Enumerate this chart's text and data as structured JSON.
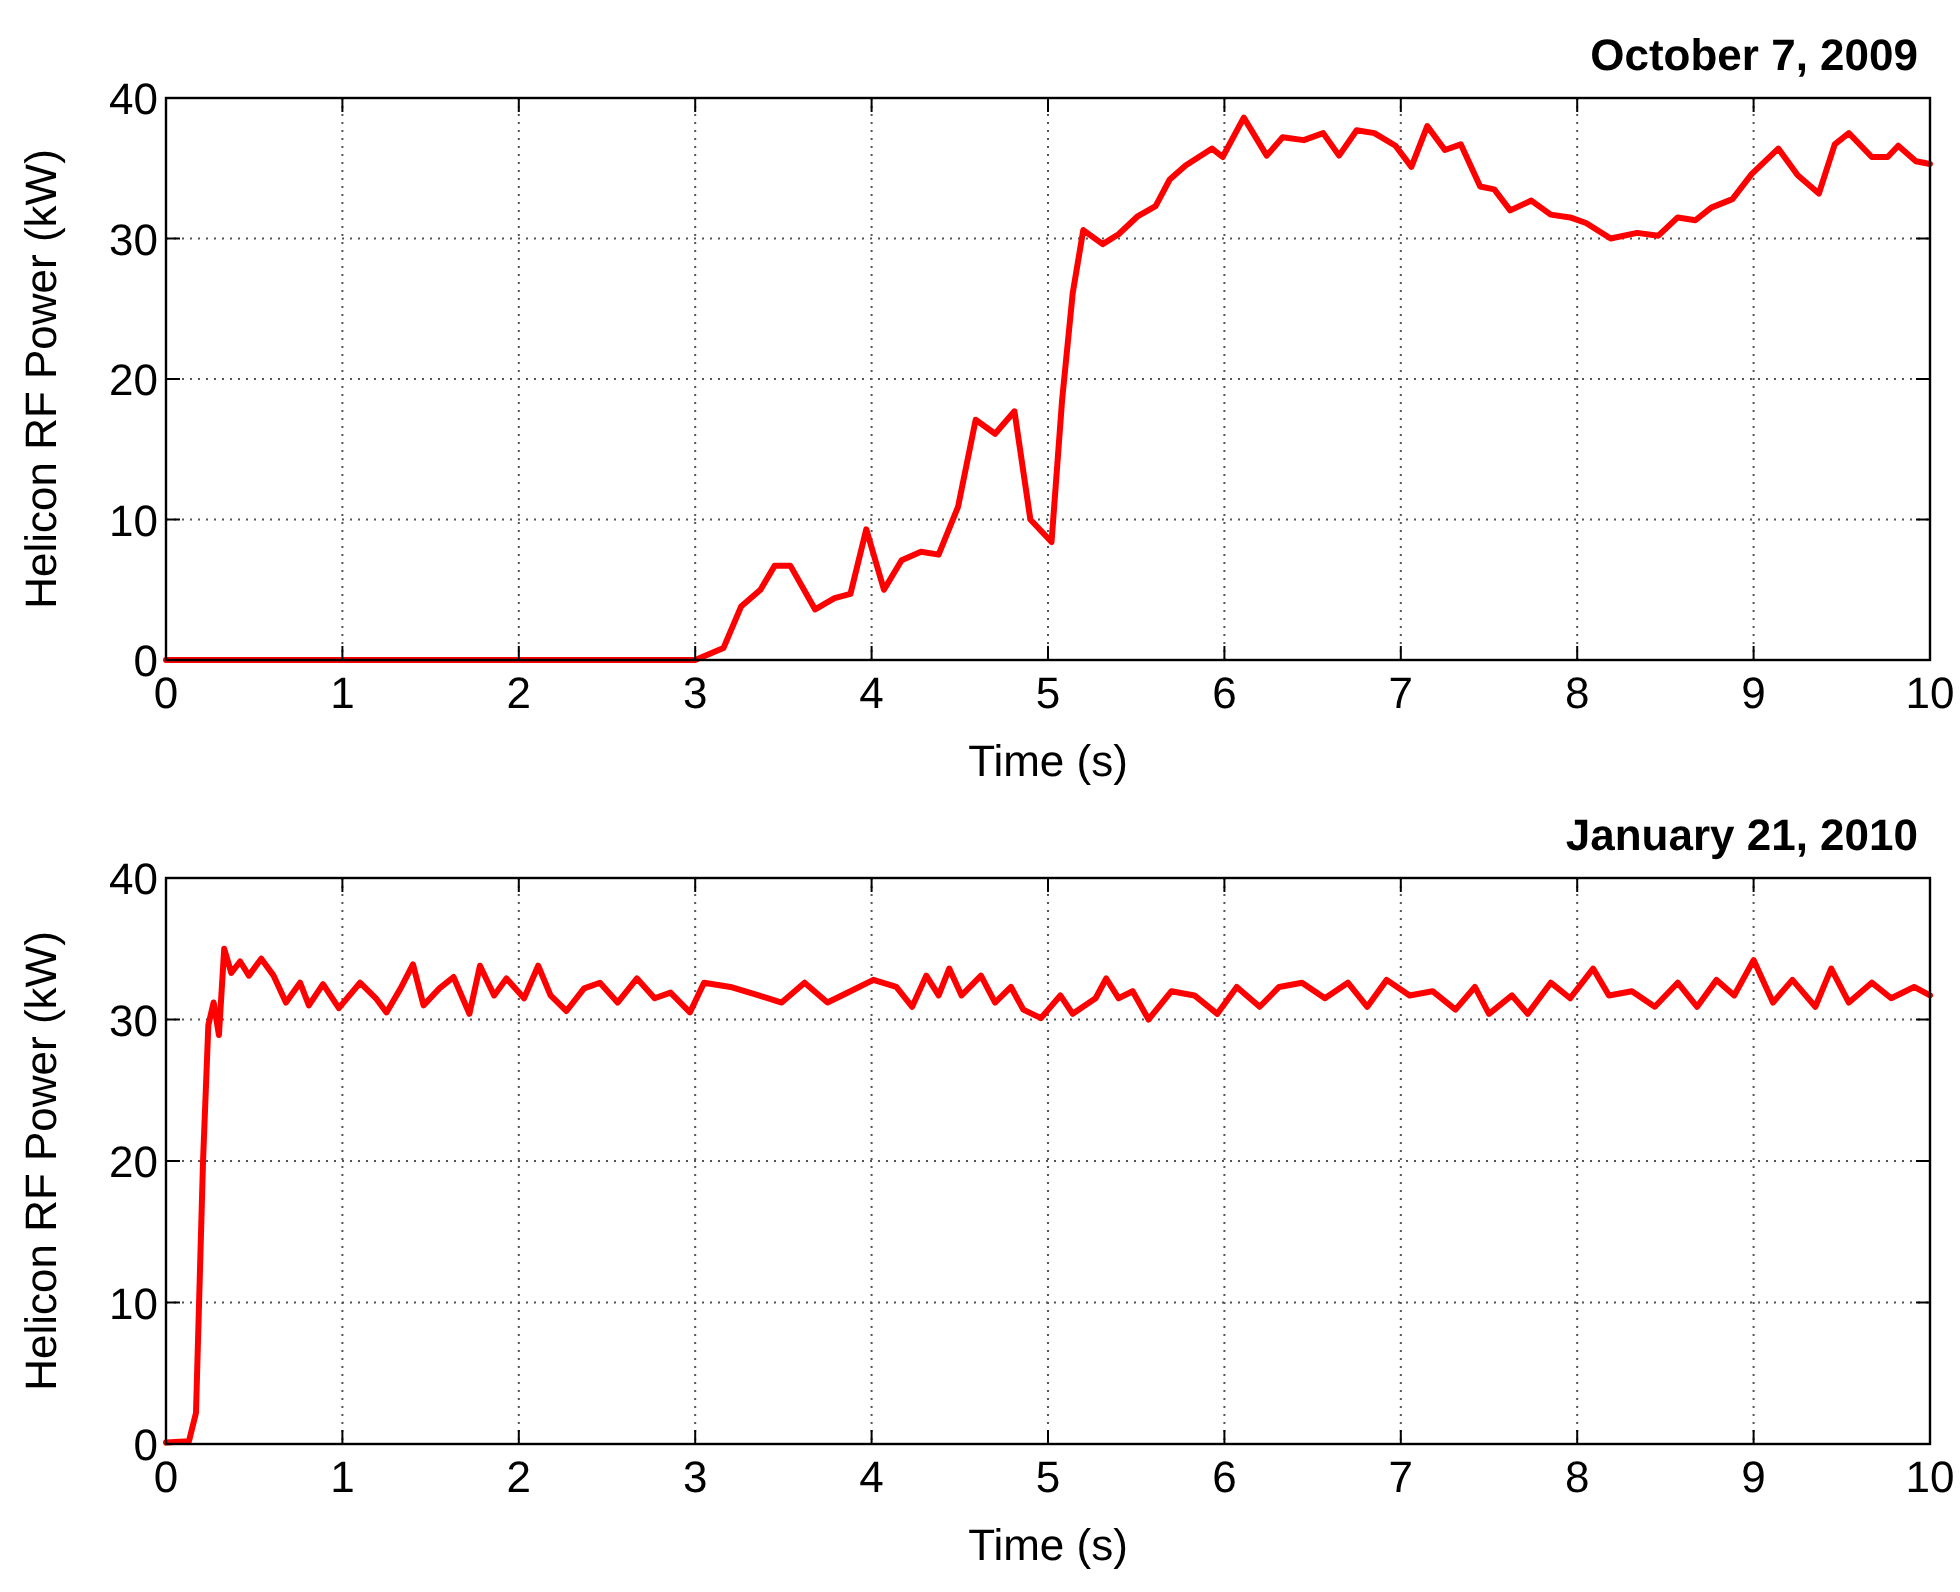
{
  "chart_data": [
    {
      "type": "line",
      "title": "October 7, 2009",
      "xlabel": "Time (s)",
      "ylabel": "Helicon RF Power (kW)",
      "xlim": [
        0,
        10
      ],
      "ylim": [
        0,
        40
      ],
      "xticks": [
        0,
        1,
        2,
        3,
        4,
        5,
        6,
        7,
        8,
        9,
        10
      ],
      "yticks": [
        0,
        10,
        20,
        30,
        40
      ],
      "grid": true,
      "marker": "none",
      "line_style": "solid",
      "series": [
        {
          "color": "#ff0000",
          "x": [
            0,
            3.0,
            3.16,
            3.26,
            3.37,
            3.45,
            3.54,
            3.68,
            3.79,
            3.88,
            3.97,
            4.07,
            4.17,
            4.28,
            4.38,
            4.49,
            4.59,
            4.7,
            4.81,
            4.9,
            5.02,
            5.08,
            5.14,
            5.2,
            5.31,
            5.4,
            5.51,
            5.61,
            5.69,
            5.78,
            5.93,
            5.99,
            6.11,
            6.24,
            6.33,
            6.45,
            6.56,
            6.65,
            6.75,
            6.85,
            6.97,
            7.06,
            7.15,
            7.25,
            7.34,
            7.45,
            7.53,
            7.62,
            7.74,
            7.85,
            7.96,
            8.05,
            8.19,
            8.34,
            8.46,
            8.57,
            8.67,
            8.76,
            8.88,
            8.99,
            9.14,
            9.25,
            9.37,
            9.46,
            9.54,
            9.67,
            9.76,
            9.82,
            9.92,
            10.0
          ],
          "values": [
            0,
            0,
            0.85,
            3.8,
            5.0,
            6.7,
            6.7,
            3.6,
            4.4,
            4.7,
            9.3,
            5.0,
            7.1,
            7.7,
            7.5,
            10.9,
            17.1,
            16.1,
            17.7,
            10.0,
            8.4,
            18.5,
            26.1,
            30.6,
            29.6,
            30.3,
            31.6,
            32.3,
            34.2,
            35.2,
            36.4,
            35.8,
            38.6,
            35.9,
            37.2,
            37.0,
            37.5,
            35.9,
            37.7,
            37.5,
            36.6,
            35.1,
            38.0,
            36.3,
            36.7,
            33.7,
            33.5,
            32.0,
            32.7,
            31.7,
            31.5,
            31.1,
            30.0,
            30.4,
            30.2,
            31.5,
            31.3,
            32.2,
            32.8,
            34.6,
            36.4,
            34.5,
            33.2,
            36.7,
            37.5,
            35.8,
            35.8,
            36.6,
            35.5,
            35.3
          ]
        }
      ]
    },
    {
      "type": "line",
      "title": "January 21, 2010",
      "xlabel": "Time (s)",
      "ylabel": "Helicon RF Power (kW)",
      "xlim": [
        0,
        10
      ],
      "ylim": [
        0,
        40
      ],
      "xticks": [
        0,
        1,
        2,
        3,
        4,
        5,
        6,
        7,
        8,
        9,
        10
      ],
      "yticks": [
        0,
        10,
        20,
        30,
        40
      ],
      "grid": true,
      "marker": "none",
      "line_style": "solid",
      "series": [
        {
          "color": "#ff0000",
          "x": [
            0,
            0.13,
            0.17,
            0.21,
            0.24,
            0.27,
            0.3,
            0.33,
            0.37,
            0.42,
            0.47,
            0.54,
            0.61,
            0.68,
            0.76,
            0.81,
            0.89,
            0.98,
            1.1,
            1.19,
            1.25,
            1.33,
            1.4,
            1.46,
            1.55,
            1.63,
            1.72,
            1.78,
            1.86,
            1.93,
            2.03,
            2.11,
            2.18,
            2.27,
            2.37,
            2.46,
            2.56,
            2.67,
            2.77,
            2.86,
            2.97,
            3.05,
            3.2,
            3.36,
            3.49,
            3.62,
            3.75,
            3.88,
            4.01,
            4.14,
            4.23,
            4.31,
            4.38,
            4.44,
            4.51,
            4.62,
            4.7,
            4.79,
            4.86,
            4.96,
            5.07,
            5.14,
            5.27,
            5.33,
            5.4,
            5.48,
            5.57,
            5.7,
            5.83,
            5.96,
            6.07,
            6.2,
            6.31,
            6.44,
            6.57,
            6.7,
            6.81,
            6.92,
            7.05,
            7.18,
            7.31,
            7.42,
            7.5,
            7.63,
            7.72,
            7.85,
            7.96,
            8.09,
            8.18,
            8.31,
            8.44,
            8.57,
            8.68,
            8.79,
            8.89,
            9.0,
            9.11,
            9.22,
            9.35,
            9.44,
            9.54,
            9.67,
            9.78,
            9.91,
            10.0
          ],
          "values": [
            0.1,
            0.2,
            2.2,
            20,
            29.6,
            31.2,
            28.9,
            35.0,
            33.3,
            34.1,
            33.1,
            34.3,
            33.1,
            31.2,
            32.6,
            31.0,
            32.5,
            30.8,
            32.6,
            31.5,
            30.5,
            32.2,
            33.9,
            31.0,
            32.2,
            33.0,
            30.4,
            33.8,
            31.7,
            32.9,
            31.5,
            33.8,
            31.7,
            30.6,
            32.2,
            32.6,
            31.2,
            32.9,
            31.5,
            31.9,
            30.5,
            32.6,
            32.3,
            31.7,
            31.2,
            32.6,
            31.2,
            32.0,
            32.8,
            32.3,
            30.9,
            33.1,
            31.7,
            33.6,
            31.7,
            33.1,
            31.2,
            32.3,
            30.7,
            30.1,
            31.7,
            30.4,
            31.5,
            32.9,
            31.5,
            32.0,
            30.0,
            32.0,
            31.7,
            30.4,
            32.3,
            30.9,
            32.3,
            32.6,
            31.5,
            32.6,
            30.9,
            32.8,
            31.7,
            32.0,
            30.7,
            32.3,
            30.4,
            31.7,
            30.4,
            32.6,
            31.5,
            33.6,
            31.7,
            32.0,
            30.9,
            32.6,
            30.9,
            32.8,
            31.7,
            34.2,
            31.2,
            32.8,
            30.9,
            33.6,
            31.2,
            32.6,
            31.5,
            32.3,
            31.7
          ]
        }
      ]
    }
  ]
}
